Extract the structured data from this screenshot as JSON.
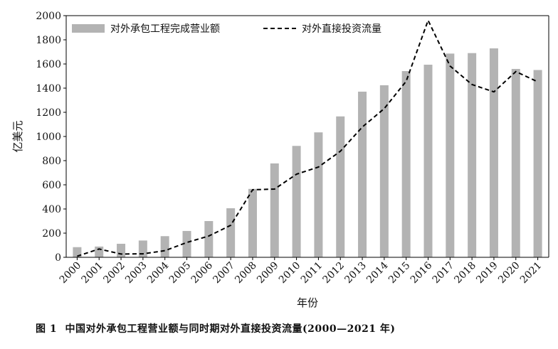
{
  "chart_data": {
    "type": "bar",
    "categories": [
      "2000",
      "2001",
      "2002",
      "2003",
      "2004",
      "2005",
      "2006",
      "2007",
      "2008",
      "2009",
      "2010",
      "2011",
      "2012",
      "2013",
      "2014",
      "2015",
      "2016",
      "2017",
      "2018",
      "2019",
      "2020",
      "2021"
    ],
    "series": [
      {
        "name": "对外承包工程完成营业额",
        "type": "bar",
        "color": "#b3b3b3",
        "values": [
          84,
          89,
          112,
          139,
          175,
          218,
          300,
          406,
          566,
          777,
          922,
          1034,
          1166,
          1371,
          1424,
          1541,
          1594,
          1686,
          1690,
          1729,
          1559,
          1550
        ]
      },
      {
        "name": "对外直接投资流量",
        "type": "line",
        "style": "dashed",
        "color": "#000000",
        "values": [
          9,
          69,
          27,
          29,
          55,
          123,
          176,
          265,
          559,
          565,
          688,
          747,
          878,
          1078,
          1231,
          1457,
          1961,
          1583,
          1430,
          1369,
          1537,
          1452
        ]
      }
    ],
    "xlabel": "年份",
    "ylabel": "亿美元",
    "ylim": [
      0,
      2000
    ],
    "yticks": [
      0,
      200,
      400,
      600,
      800,
      1000,
      1200,
      1400,
      1600,
      1800,
      2000
    ],
    "grid": false,
    "legend_position": "top-left"
  },
  "caption": {
    "figure_label": "图 1",
    "text": "中国对外承包工程营业额与同时期对外直接投资流量(2000—2021 年)"
  }
}
